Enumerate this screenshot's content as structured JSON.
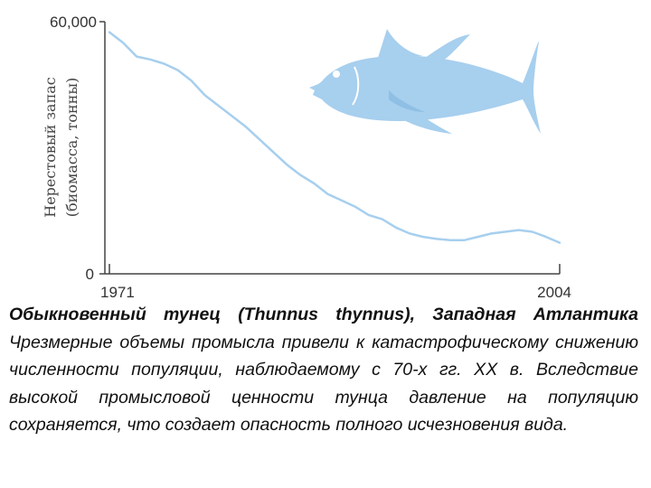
{
  "chart_data": {
    "type": "line",
    "title": "",
    "ylabel_line1": "Нерестовый запас",
    "ylabel_line2": "(биомасса, тонны)",
    "xlabel": "",
    "x_tick_labels": [
      "1971",
      "2004"
    ],
    "y_tick_labels": [
      "60,000",
      "0"
    ],
    "xlim": [
      1971,
      2004
    ],
    "ylim": [
      0,
      60000
    ],
    "grid": false,
    "line_color": "#a7cfee",
    "fish_color": "#a7cfee",
    "x": [
      1971,
      1972,
      1973,
      1974,
      1975,
      1976,
      1977,
      1978,
      1979,
      1980,
      1981,
      1982,
      1983,
      1984,
      1985,
      1986,
      1987,
      1988,
      1989,
      1990,
      1991,
      1992,
      1993,
      1994,
      1995,
      1996,
      1997,
      1998,
      1999,
      2000,
      2001,
      2002,
      2003,
      2004
    ],
    "y": [
      57500,
      55000,
      51700,
      51000,
      50000,
      48500,
      46000,
      42500,
      40000,
      37500,
      35000,
      32000,
      29000,
      26000,
      23500,
      21500,
      19000,
      17500,
      16000,
      14000,
      13000,
      11000,
      9600,
      8800,
      8300,
      8000,
      8000,
      8800,
      9600,
      10000,
      10400,
      10000,
      8800,
      7400
    ]
  },
  "caption": {
    "lead": "Обыкновенный тунец (Thunnus thynnus), Западная Атлантика",
    "body": " Чрезмерные объемы промысла привели к катастрофическому снижению численности популяции, наблюдаемому с 70-х гг. XX в. Вследствие высокой промысловой ценности тунца давление на популяцию сохраняется, что создает опасность полного исчезновения вида."
  }
}
